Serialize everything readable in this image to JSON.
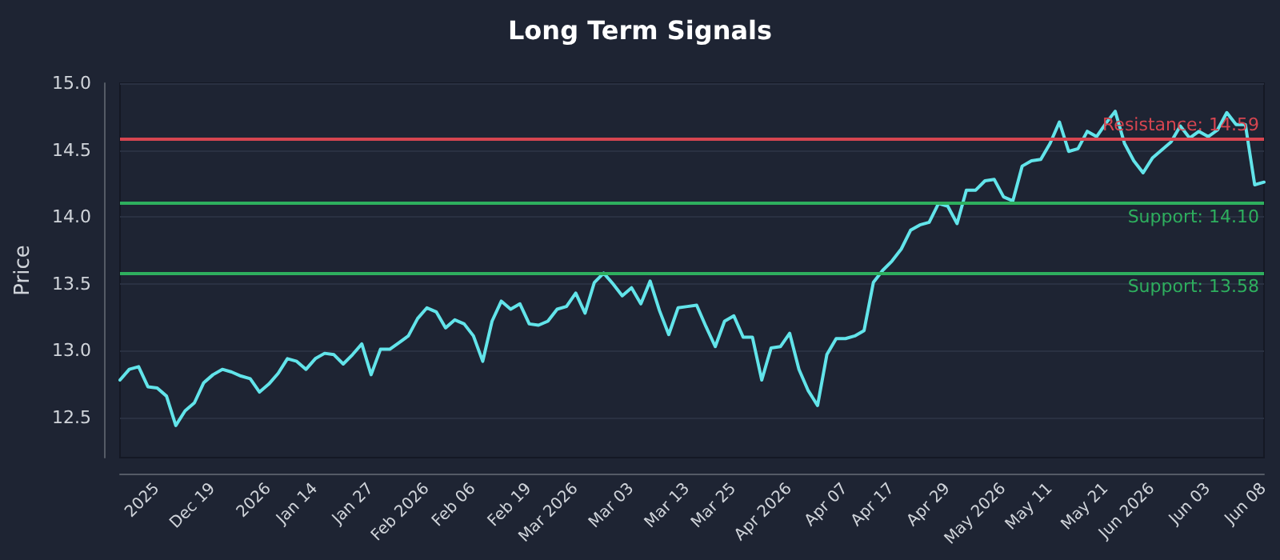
{
  "chart_data": {
    "type": "line",
    "title": "Long Term Signals",
    "ylabel": "Price",
    "categories": [
      null,
      null,
      null,
      null,
      "2025",
      null,
      null,
      null,
      null,
      null,
      "Dec 19",
      null,
      null,
      null,
      null,
      null,
      "2026",
      null,
      null,
      null,
      null,
      "Jan 14",
      null,
      null,
      null,
      null,
      null,
      "Jan 27",
      null,
      null,
      null,
      null,
      null,
      "Feb 2026",
      null,
      null,
      null,
      null,
      "Feb 06",
      null,
      null,
      null,
      null,
      null,
      "Feb 19",
      null,
      null,
      null,
      null,
      "Mar 2026",
      null,
      null,
      null,
      null,
      null,
      "Mar 03",
      null,
      null,
      null,
      null,
      null,
      "Mar 13",
      null,
      null,
      null,
      null,
      "Mar 25",
      null,
      null,
      null,
      null,
      null,
      "Apr 2026",
      null,
      null,
      null,
      null,
      null,
      "Apr 07",
      null,
      null,
      null,
      null,
      "Apr 17",
      null,
      null,
      null,
      null,
      null,
      "Apr 29",
      null,
      null,
      null,
      null,
      null,
      "May 2026",
      null,
      null,
      null,
      null,
      "May 11",
      null,
      null,
      null,
      null,
      null,
      "May 21",
      null,
      null,
      null,
      null,
      "Jun 2026",
      null,
      null,
      null,
      null,
      null,
      "Jun 03",
      null,
      null,
      null,
      null,
      null,
      "Jun 08"
    ],
    "series": [
      {
        "color": "#62e4ea",
        "values": [
          12.78,
          12.86,
          12.88,
          12.73,
          12.72,
          12.66,
          12.44,
          12.55,
          12.61,
          12.76,
          12.82,
          12.86,
          12.84,
          12.81,
          12.79,
          12.69,
          12.75,
          12.83,
          12.94,
          12.92,
          12.86,
          12.94,
          12.98,
          12.97,
          12.9,
          12.97,
          13.05,
          12.82,
          13.01,
          13.01,
          13.06,
          13.11,
          13.24,
          13.32,
          13.29,
          13.17,
          13.23,
          13.2,
          13.11,
          12.92,
          13.22,
          13.37,
          13.31,
          13.35,
          13.2,
          13.19,
          13.22,
          13.31,
          13.33,
          13.43,
          13.28,
          13.51,
          13.58,
          13.5,
          13.41,
          13.47,
          13.35,
          13.52,
          13.3,
          13.12,
          13.32,
          13.33,
          13.34,
          13.18,
          13.03,
          13.22,
          13.26,
          13.1,
          13.1,
          12.78,
          13.02,
          13.03,
          13.13,
          12.86,
          12.7,
          12.59,
          12.97,
          13.09,
          13.09,
          13.11,
          13.15,
          13.51,
          13.6,
          13.67,
          13.76,
          13.9,
          13.94,
          13.96,
          14.1,
          14.08,
          13.95,
          14.2,
          14.2,
          14.27,
          14.28,
          14.15,
          14.12,
          14.38,
          14.42,
          14.43,
          14.55,
          14.71,
          14.49,
          14.51,
          14.64,
          14.6,
          14.7,
          14.79,
          14.55,
          14.42,
          14.33,
          14.44,
          14.5,
          14.56,
          14.68,
          14.59,
          14.64,
          14.6,
          14.65,
          14.78,
          14.69,
          14.69,
          14.24,
          14.26
        ]
      }
    ],
    "ylim": [
      12.2,
      15.0
    ],
    "yticks": [
      12.5,
      {
        "value": 13,
        "label": "13.0"
      },
      13.5,
      {
        "value": 14,
        "label": "14.0"
      },
      14.5,
      {
        "value": 15,
        "label": "15.0"
      }
    ],
    "grid": "y",
    "marker": "none",
    "line_style": "solid",
    "ref_lines": [
      {
        "axis": "y",
        "value": 14.59,
        "label": "Resistance: 14.59",
        "color": "#d64550"
      },
      {
        "axis": "y",
        "value": 14.1,
        "label": "Support: 14.10",
        "color": "#2eaf5e"
      },
      {
        "axis": "y",
        "value": 13.58,
        "label": "Support: 13.58",
        "color": "#2eaf5e"
      }
    ]
  }
}
